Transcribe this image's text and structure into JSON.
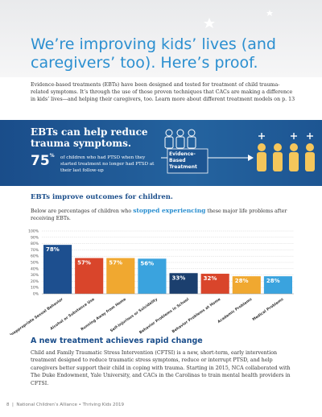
{
  "header": {
    "title": "We’re improving kids’ lives (and caregivers’ too). Here’s proof."
  },
  "intro": "Evidence-based treatments (EBTs) have been designed and tested for treatment of child trauma-related symptoms. It’s through the use of those proven techniques that CACs are making a difference in kids’ lives—and helping their caregivers, too. Learn more about different treatment models on p. 13",
  "banner": {
    "heading": "EBTs can help reduce trauma symptoms.",
    "stat": "75",
    "stat_unit": "%",
    "stat_text": "of children who had PTSD when they started treatment no longer had PTSD at their last follow-up",
    "diagram_label": "Evidence- Based Treatment"
  },
  "chart_data": {
    "type": "bar",
    "title": "EBTs improve outcomes for children.",
    "subtitle": [
      "Below are percentages of children who ",
      "stopped experiencing",
      " these major life problems after receiving EBTs."
    ],
    "categories": [
      "Developmentally Inappropriate Sexual Behavior",
      "Alcohol or Substance Use",
      "Running Away from Home",
      "Self-Injurious or Suicidality",
      "Behavior Problems in School",
      "Behavior Problems at Home",
      "Academic Problems",
      "Medical Problems"
    ],
    "values": [
      78,
      57,
      57,
      56,
      33,
      32,
      28,
      28
    ],
    "value_labels": [
      "78%",
      "57%",
      "57%",
      "56%",
      "33%",
      "32%",
      "28%",
      "28%"
    ],
    "colors": [
      "#1d4f8f",
      "#d9452b",
      "#f0a830",
      "#3aa3de",
      "#1b3f6e",
      "#d9452b",
      "#f0a830",
      "#3aa3de"
    ],
    "ylim": [
      0,
      100
    ],
    "yticks": [
      {
        "value": 0,
        "label": "0%"
      },
      {
        "value": 10,
        "label": "10%"
      },
      {
        "value": 20,
        "label": "20%"
      },
      {
        "value": 30,
        "label": "30%"
      },
      {
        "value": 40,
        "label": "40%"
      },
      {
        "value": 50,
        "label": "50%"
      },
      {
        "value": 60,
        "label": "60%"
      },
      {
        "value": 70,
        "label": "70%"
      },
      {
        "value": 80,
        "label": "80%"
      },
      {
        "value": 90,
        "label": "90%"
      },
      {
        "value": 100,
        "label": "100%"
      }
    ],
    "grid": true
  },
  "section": {
    "heading": "A new treatment achieves rapid change",
    "text": "Child and Family Traumatic Stress Intervention (CFTSI) is a new, short-term, early intervention treatment designed to reduce traumatic stress symptoms, reduce or interrupt PTSD, and help caregivers better support their child in coping with trauma. Starting in 2015, NCA collaborated with The Duke Endowment, Yale University, and CACs in the Carolinas to train mental health providers in CFTSI."
  },
  "footer": {
    "page": "8",
    "text": "National Children’s Alliance • Thriving Kids 2019"
  }
}
